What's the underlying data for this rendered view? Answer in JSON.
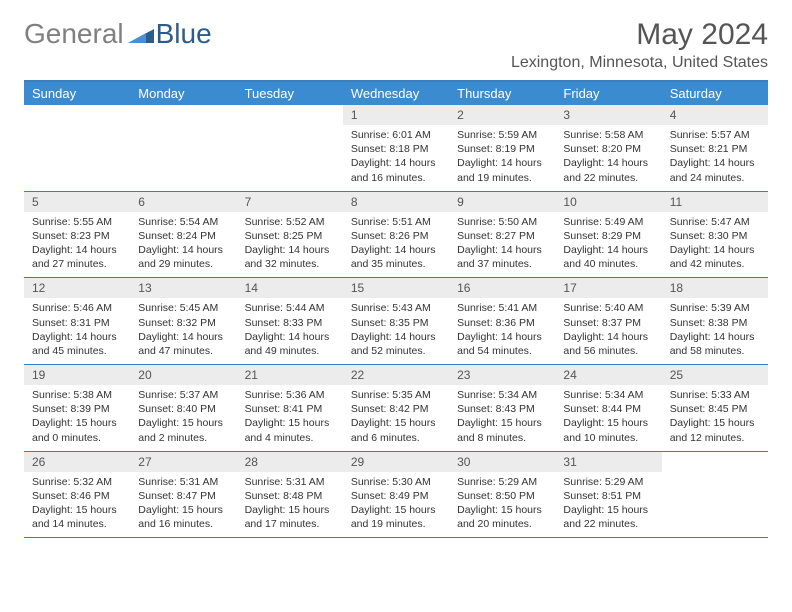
{
  "logo": {
    "word1": "General",
    "word2": "Blue"
  },
  "title": "May 2024",
  "location": "Lexington, Minnesota, United States",
  "colors": {
    "header_bg": "#3b8bd0",
    "divider": "#3b7fbf",
    "daynum_bg": "#ececec",
    "text": "#333333",
    "title_text": "#555555"
  },
  "day_headers": [
    "Sunday",
    "Monday",
    "Tuesday",
    "Wednesday",
    "Thursday",
    "Friday",
    "Saturday"
  ],
  "weeks": [
    [
      {
        "num": "",
        "lines": []
      },
      {
        "num": "",
        "lines": []
      },
      {
        "num": "",
        "lines": []
      },
      {
        "num": "1",
        "lines": [
          "Sunrise: 6:01 AM",
          "Sunset: 8:18 PM",
          "Daylight: 14 hours",
          "and 16 minutes."
        ]
      },
      {
        "num": "2",
        "lines": [
          "Sunrise: 5:59 AM",
          "Sunset: 8:19 PM",
          "Daylight: 14 hours",
          "and 19 minutes."
        ]
      },
      {
        "num": "3",
        "lines": [
          "Sunrise: 5:58 AM",
          "Sunset: 8:20 PM",
          "Daylight: 14 hours",
          "and 22 minutes."
        ]
      },
      {
        "num": "4",
        "lines": [
          "Sunrise: 5:57 AM",
          "Sunset: 8:21 PM",
          "Daylight: 14 hours",
          "and 24 minutes."
        ]
      }
    ],
    [
      {
        "num": "5",
        "lines": [
          "Sunrise: 5:55 AM",
          "Sunset: 8:23 PM",
          "Daylight: 14 hours",
          "and 27 minutes."
        ]
      },
      {
        "num": "6",
        "lines": [
          "Sunrise: 5:54 AM",
          "Sunset: 8:24 PM",
          "Daylight: 14 hours",
          "and 29 minutes."
        ]
      },
      {
        "num": "7",
        "lines": [
          "Sunrise: 5:52 AM",
          "Sunset: 8:25 PM",
          "Daylight: 14 hours",
          "and 32 minutes."
        ]
      },
      {
        "num": "8",
        "lines": [
          "Sunrise: 5:51 AM",
          "Sunset: 8:26 PM",
          "Daylight: 14 hours",
          "and 35 minutes."
        ]
      },
      {
        "num": "9",
        "lines": [
          "Sunrise: 5:50 AM",
          "Sunset: 8:27 PM",
          "Daylight: 14 hours",
          "and 37 minutes."
        ]
      },
      {
        "num": "10",
        "lines": [
          "Sunrise: 5:49 AM",
          "Sunset: 8:29 PM",
          "Daylight: 14 hours",
          "and 40 minutes."
        ]
      },
      {
        "num": "11",
        "lines": [
          "Sunrise: 5:47 AM",
          "Sunset: 8:30 PM",
          "Daylight: 14 hours",
          "and 42 minutes."
        ]
      }
    ],
    [
      {
        "num": "12",
        "lines": [
          "Sunrise: 5:46 AM",
          "Sunset: 8:31 PM",
          "Daylight: 14 hours",
          "and 45 minutes."
        ]
      },
      {
        "num": "13",
        "lines": [
          "Sunrise: 5:45 AM",
          "Sunset: 8:32 PM",
          "Daylight: 14 hours",
          "and 47 minutes."
        ]
      },
      {
        "num": "14",
        "lines": [
          "Sunrise: 5:44 AM",
          "Sunset: 8:33 PM",
          "Daylight: 14 hours",
          "and 49 minutes."
        ]
      },
      {
        "num": "15",
        "lines": [
          "Sunrise: 5:43 AM",
          "Sunset: 8:35 PM",
          "Daylight: 14 hours",
          "and 52 minutes."
        ]
      },
      {
        "num": "16",
        "lines": [
          "Sunrise: 5:41 AM",
          "Sunset: 8:36 PM",
          "Daylight: 14 hours",
          "and 54 minutes."
        ]
      },
      {
        "num": "17",
        "lines": [
          "Sunrise: 5:40 AM",
          "Sunset: 8:37 PM",
          "Daylight: 14 hours",
          "and 56 minutes."
        ]
      },
      {
        "num": "18",
        "lines": [
          "Sunrise: 5:39 AM",
          "Sunset: 8:38 PM",
          "Daylight: 14 hours",
          "and 58 minutes."
        ]
      }
    ],
    [
      {
        "num": "19",
        "lines": [
          "Sunrise: 5:38 AM",
          "Sunset: 8:39 PM",
          "Daylight: 15 hours",
          "and 0 minutes."
        ]
      },
      {
        "num": "20",
        "lines": [
          "Sunrise: 5:37 AM",
          "Sunset: 8:40 PM",
          "Daylight: 15 hours",
          "and 2 minutes."
        ]
      },
      {
        "num": "21",
        "lines": [
          "Sunrise: 5:36 AM",
          "Sunset: 8:41 PM",
          "Daylight: 15 hours",
          "and 4 minutes."
        ]
      },
      {
        "num": "22",
        "lines": [
          "Sunrise: 5:35 AM",
          "Sunset: 8:42 PM",
          "Daylight: 15 hours",
          "and 6 minutes."
        ]
      },
      {
        "num": "23",
        "lines": [
          "Sunrise: 5:34 AM",
          "Sunset: 8:43 PM",
          "Daylight: 15 hours",
          "and 8 minutes."
        ]
      },
      {
        "num": "24",
        "lines": [
          "Sunrise: 5:34 AM",
          "Sunset: 8:44 PM",
          "Daylight: 15 hours",
          "and 10 minutes."
        ]
      },
      {
        "num": "25",
        "lines": [
          "Sunrise: 5:33 AM",
          "Sunset: 8:45 PM",
          "Daylight: 15 hours",
          "and 12 minutes."
        ]
      }
    ],
    [
      {
        "num": "26",
        "lines": [
          "Sunrise: 5:32 AM",
          "Sunset: 8:46 PM",
          "Daylight: 15 hours",
          "and 14 minutes."
        ]
      },
      {
        "num": "27",
        "lines": [
          "Sunrise: 5:31 AM",
          "Sunset: 8:47 PM",
          "Daylight: 15 hours",
          "and 16 minutes."
        ]
      },
      {
        "num": "28",
        "lines": [
          "Sunrise: 5:31 AM",
          "Sunset: 8:48 PM",
          "Daylight: 15 hours",
          "and 17 minutes."
        ]
      },
      {
        "num": "29",
        "lines": [
          "Sunrise: 5:30 AM",
          "Sunset: 8:49 PM",
          "Daylight: 15 hours",
          "and 19 minutes."
        ]
      },
      {
        "num": "30",
        "lines": [
          "Sunrise: 5:29 AM",
          "Sunset: 8:50 PM",
          "Daylight: 15 hours",
          "and 20 minutes."
        ]
      },
      {
        "num": "31",
        "lines": [
          "Sunrise: 5:29 AM",
          "Sunset: 8:51 PM",
          "Daylight: 15 hours",
          "and 22 minutes."
        ]
      },
      {
        "num": "",
        "lines": []
      }
    ]
  ]
}
